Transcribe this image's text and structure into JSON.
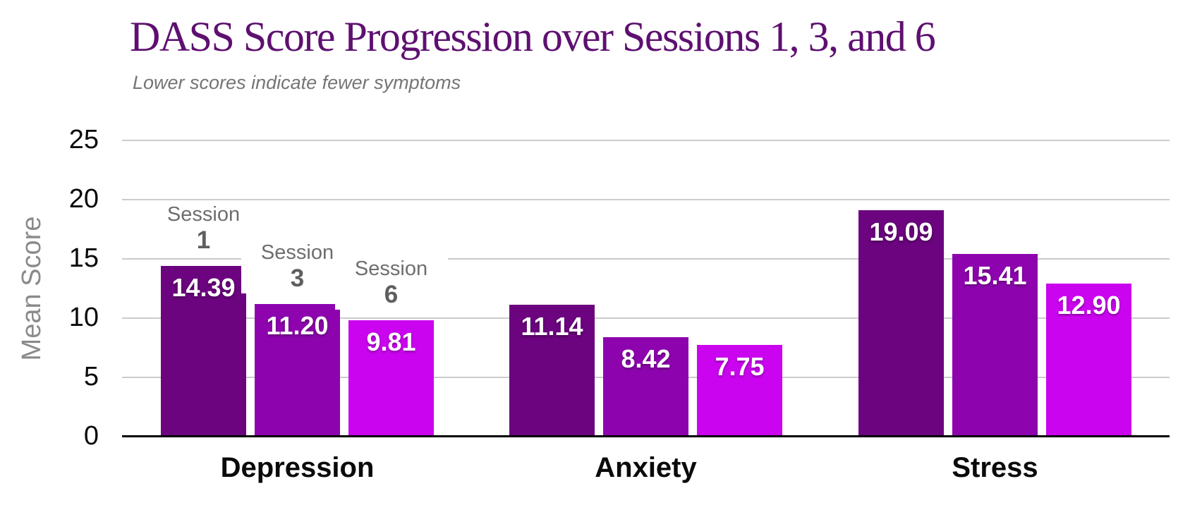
{
  "chart_data": {
    "type": "bar",
    "title": "DASS Score Progression over Sessions 1, 3, and 6",
    "subtitle": "Lower scores indicate fewer symptoms",
    "ylabel": "Mean Score",
    "categories": [
      "Depression",
      "Anxiety",
      "Stress"
    ],
    "series": [
      {
        "name": "Session 1",
        "color": "#6b047e",
        "values": [
          14.39,
          11.14,
          19.09
        ],
        "labels": [
          "14.39",
          "11.14",
          "19.09"
        ]
      },
      {
        "name": "Session 3",
        "color": "#8d04ae",
        "values": [
          11.2,
          8.42,
          15.41
        ],
        "labels": [
          "11.20",
          "8.42",
          "15.41"
        ]
      },
      {
        "name": "Session 6",
        "color": "#cb04ef",
        "values": [
          9.81,
          7.75,
          12.9
        ],
        "labels": [
          "9.81",
          "7.75",
          "12.90"
        ]
      }
    ],
    "bar_annotations": [
      {
        "line1": "Session",
        "line2": "1"
      },
      {
        "line1": "Session",
        "line2": "3"
      },
      {
        "line1": "Session",
        "line2": "6"
      }
    ],
    "annotations_on_category": "Depression",
    "yticks": [
      0,
      5,
      10,
      15,
      20,
      25
    ],
    "ylim": [
      0,
      25
    ],
    "grid": true,
    "legend_position": "none",
    "colors": {
      "title": "#5e1070",
      "subtitle": "#757575",
      "ylabel_text": "#8a8a8a",
      "tick_text": "#0a0a0a",
      "gridline": "#cbcbcb",
      "baseline": "#000000",
      "value_label_text": "#ffffff",
      "annotation_text": "#6e6e6e",
      "background": "#ffffff"
    }
  }
}
